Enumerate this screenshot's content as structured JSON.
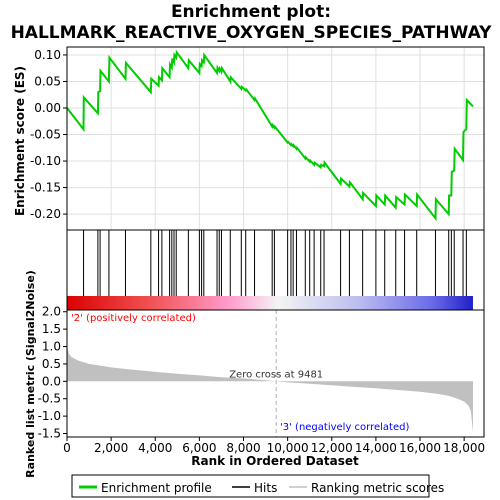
{
  "chart_data": {
    "type": "line",
    "title_line1": "Enrichment plot:",
    "title_line2": "HALLMARK_REACTIVE_OXYGEN_SPECIES_PATHWAY",
    "es_panel": {
      "ylabel": "Enrichment score (ES)",
      "ylim": [
        -0.23,
        0.115
      ],
      "yticks": [
        0.1,
        0.05,
        0.0,
        -0.05,
        -0.1,
        -0.15,
        -0.2
      ],
      "ytick_labels": [
        "0.10",
        "0.05",
        "0.00",
        "-0.05",
        "-0.10",
        "-0.15",
        "-0.20"
      ],
      "grid": true
    },
    "xlim": [
      0,
      18900
    ],
    "xticks": [
      0,
      2000,
      4000,
      6000,
      8000,
      10000,
      12000,
      14000,
      16000,
      18000
    ],
    "xtick_labels": [
      "0",
      "2,000",
      "4,000",
      "6,000",
      "8,000",
      "10,000",
      "12,000",
      "14,000",
      "16,000",
      "18,000"
    ],
    "xlabel": "Rank in Ordered Dataset",
    "es_curve": {
      "name": "Enrichment profile",
      "color": "#00cc00",
      "x": [
        0,
        750,
        760,
        1400,
        1420,
        1500,
        1520,
        1900,
        1920,
        2650,
        2670,
        3800,
        3820,
        4150,
        4170,
        4300,
        4320,
        4650,
        4670,
        4750,
        4770,
        4850,
        4870,
        4950,
        4970,
        5500,
        5520,
        6000,
        6020,
        6100,
        6120,
        6200,
        6220,
        6800,
        6820,
        6900,
        6920,
        7000,
        7020,
        7400,
        7420,
        7900,
        7920,
        8100,
        8120,
        8500,
        8520,
        9300,
        9320,
        9400,
        9420,
        10000,
        10020,
        10150,
        10170,
        10250,
        10270,
        10400,
        10420,
        10800,
        10820,
        11000,
        11020,
        11200,
        11220,
        11500,
        11520,
        11650,
        11670,
        12400,
        12420,
        12800,
        12820,
        13400,
        13420,
        14000,
        14020,
        14400,
        14420,
        14900,
        14920,
        15300,
        15320,
        15850,
        15870,
        16700,
        16720,
        17300,
        17320,
        17420,
        17440,
        17550,
        17570,
        17950,
        17970,
        18100,
        18120,
        18400
      ],
      "y": [
        0.0,
        -0.04,
        0.02,
        -0.01,
        0.03,
        0.032,
        0.07,
        0.05,
        0.095,
        0.055,
        0.085,
        0.03,
        0.055,
        0.042,
        0.058,
        0.052,
        0.075,
        0.058,
        0.082,
        0.076,
        0.093,
        0.086,
        0.1,
        0.095,
        0.105,
        0.075,
        0.09,
        0.066,
        0.083,
        0.079,
        0.09,
        0.086,
        0.1,
        0.066,
        0.076,
        0.07,
        0.074,
        0.068,
        0.075,
        0.05,
        0.058,
        0.036,
        0.04,
        0.033,
        0.035,
        0.015,
        0.018,
        -0.035,
        -0.032,
        -0.037,
        -0.035,
        -0.065,
        -0.064,
        -0.07,
        -0.068,
        -0.072,
        -0.07,
        -0.077,
        -0.075,
        -0.095,
        -0.093,
        -0.101,
        -0.099,
        -0.107,
        -0.103,
        -0.112,
        -0.107,
        -0.11,
        -0.103,
        -0.143,
        -0.133,
        -0.148,
        -0.14,
        -0.172,
        -0.16,
        -0.185,
        -0.165,
        -0.182,
        -0.165,
        -0.188,
        -0.168,
        -0.182,
        -0.163,
        -0.185,
        -0.163,
        -0.208,
        -0.172,
        -0.2,
        -0.165,
        -0.165,
        -0.12,
        -0.118,
        -0.077,
        -0.098,
        -0.045,
        -0.04,
        0.015,
        0.003
      ]
    },
    "hits": {
      "name": "Hits",
      "positions": [
        750,
        1400,
        1500,
        1900,
        2650,
        3800,
        4150,
        4300,
        4650,
        4750,
        4850,
        4950,
        5500,
        6000,
        6100,
        6200,
        6800,
        6900,
        7000,
        7400,
        7900,
        8100,
        8500,
        9300,
        9400,
        10000,
        10150,
        10250,
        10400,
        10800,
        11000,
        11200,
        11500,
        11650,
        12400,
        12800,
        13400,
        14000,
        14400,
        14900,
        15300,
        15850,
        16700,
        17300,
        17420,
        17550,
        17950,
        18100
      ]
    },
    "heat_bar": {
      "colors_left_to_right": [
        "#dc0000",
        "#f05050",
        "#ff9ccc",
        "#f4f4f4",
        "#bcbcf0",
        "#6a6ae8",
        "#2020c8"
      ],
      "label_positive": "'2' (positively correlated)",
      "label_negative": "'3' (negatively correlated)",
      "positive_color": "#ff0000",
      "negative_color": "#0000ff"
    },
    "metric_panel": {
      "ylabel": "Ranked list metric (Signal2Noise)",
      "ylim": [
        -1.6,
        2.05
      ],
      "yticks": [
        2.0,
        1.5,
        1.0,
        0.5,
        0.0,
        -0.5,
        -1.0,
        -1.5
      ],
      "ytick_labels": [
        "2.0",
        "1.5",
        "1.0",
        "0.5",
        "0.0",
        "-0.5",
        "-1.0",
        "-1.5"
      ],
      "zero_cross_label": "Zero cross at 9481",
      "zero_cross": 9481,
      "fill_color": "#c0c0c0",
      "profile_x": [
        0,
        80,
        200,
        500,
        1000,
        2000,
        3000,
        4000,
        5000,
        6000,
        7000,
        8000,
        9000,
        9481,
        10000,
        11000,
        12000,
        13000,
        14000,
        15000,
        16000,
        16800,
        17300,
        17700,
        18000,
        18200,
        18300,
        18400
      ],
      "profile_y": [
        1.02,
        0.8,
        0.7,
        0.6,
        0.5,
        0.4,
        0.33,
        0.27,
        0.22,
        0.17,
        0.12,
        0.08,
        0.03,
        0.0,
        -0.03,
        -0.07,
        -0.11,
        -0.16,
        -0.2,
        -0.25,
        -0.3,
        -0.36,
        -0.42,
        -0.5,
        -0.58,
        -0.7,
        -0.85,
        -1.45
      ]
    },
    "legend": {
      "items": [
        {
          "label": "Enrichment profile",
          "color": "#00cc00",
          "kind": "line"
        },
        {
          "label": "Hits",
          "color": "#000000",
          "kind": "line"
        },
        {
          "label": "Ranking metric scores",
          "color": "#c0c0c0",
          "kind": "line"
        }
      ],
      "placement": "bottom"
    }
  }
}
